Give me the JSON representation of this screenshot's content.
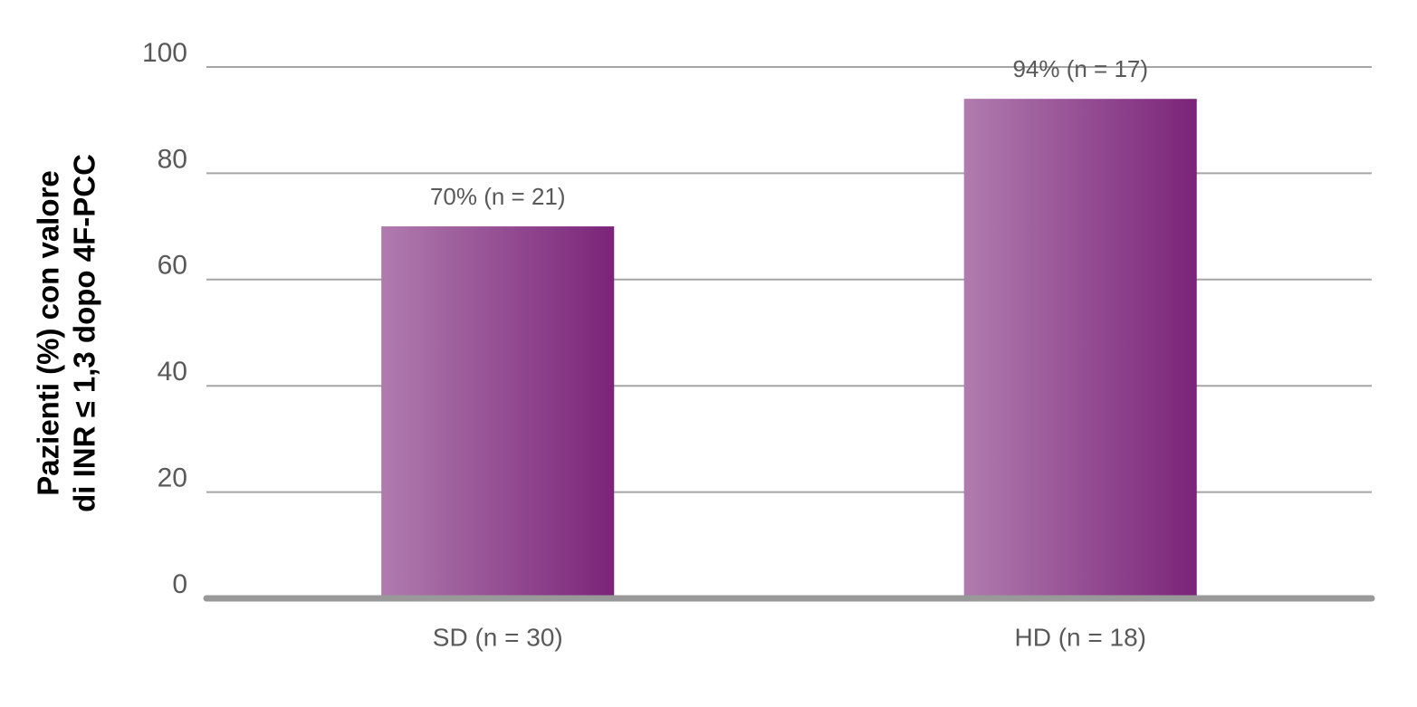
{
  "chart_data": {
    "type": "bar",
    "y_label": [
      "Pazienti (%) con valore",
      "di INR ≤ 1,3 dopo 4F-PCC"
    ],
    "categories": [
      "SD (n = 30)",
      "HD (n = 18)"
    ],
    "values": [
      70,
      94
    ],
    "value_labels": [
      "70% (n = 21)",
      "94% (n = 17)"
    ],
    "color": "#7b2479",
    "ylim": [
      0,
      100
    ],
    "yticks": [
      0,
      20,
      40,
      60,
      80,
      100
    ],
    "grid": true
  }
}
